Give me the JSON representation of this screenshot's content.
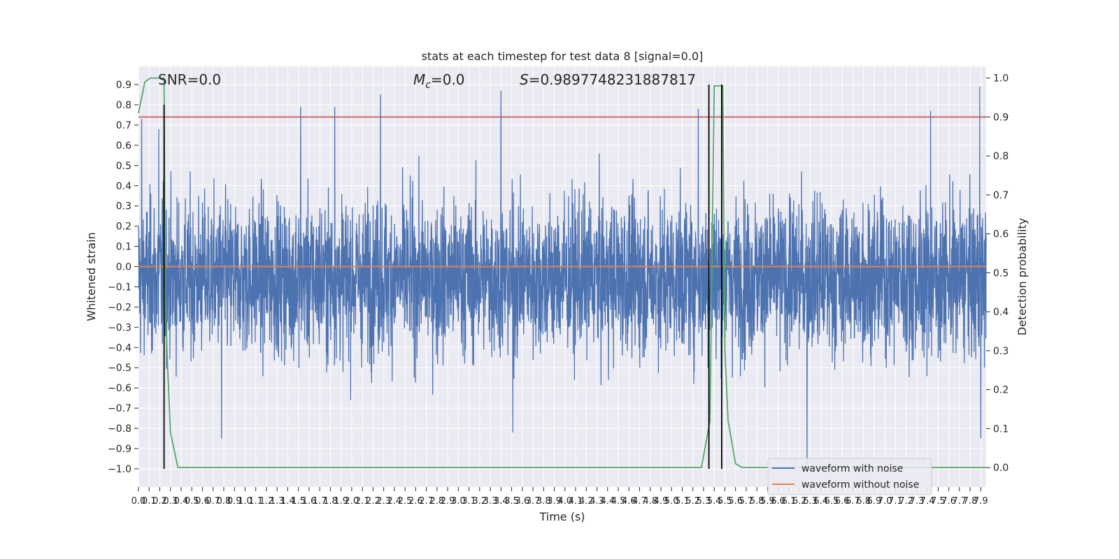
{
  "chart_data": {
    "type": "line",
    "title": "stats at each timestep for test data 8 [signal=0.0]",
    "xlabel": "Time (s)",
    "ylabel": "Whitened strain",
    "ylabel_right": "Detection probability",
    "xlim": [
      0.0,
      7.95
    ],
    "ylim": [
      -1.09,
      0.99
    ],
    "ylim_right": [
      -0.05,
      1.03
    ],
    "x_ticks": [
      0.0,
      0.1,
      0.2,
      0.3,
      0.4,
      0.5,
      0.6,
      0.7,
      0.8,
      0.9,
      1.0,
      1.1,
      1.2,
      1.3,
      1.4,
      1.5,
      1.6,
      1.7,
      1.8,
      1.9,
      2.0,
      2.1,
      2.2,
      2.3,
      2.4,
      2.5,
      2.6,
      2.7,
      2.8,
      2.9,
      3.0,
      3.1,
      3.2,
      3.3,
      3.4,
      3.5,
      3.6,
      3.7,
      3.8,
      3.9,
      4.0,
      4.1,
      4.2,
      4.3,
      4.4,
      4.5,
      4.6,
      4.7,
      4.8,
      4.9,
      5.0,
      5.1,
      5.2,
      5.3,
      5.4,
      5.5,
      5.6,
      5.7,
      5.8,
      5.9,
      6.0,
      6.1,
      6.2,
      6.3,
      6.4,
      6.5,
      6.6,
      6.7,
      6.8,
      6.9,
      7.0,
      7.1,
      7.2,
      7.3,
      7.4,
      7.5,
      7.6,
      7.7,
      7.8,
      7.9
    ],
    "x_tick_labels": [
      "0.0",
      "0.1",
      "0.2",
      "0.3",
      "0.4",
      "0.5",
      "0.6",
      "0.7",
      "0.8",
      "0.9",
      "1.0",
      "1.1",
      "1.2",
      "1.3",
      "1.4",
      "1.5",
      "1.6",
      "1.7",
      "1.8",
      "1.9",
      "2.0",
      "2.1",
      "2.2",
      "2.3",
      "2.4",
      "2.5",
      "2.6",
      "2.7",
      "2.8",
      "2.9",
      "3.0",
      "3.1",
      "3.2",
      "3.3",
      "3.4",
      "3.5",
      "3.6",
      "3.7",
      "3.8",
      "3.9",
      "4.0",
      "4.1",
      "4.2",
      "4.3",
      "4.4",
      "4.5",
      "4.6",
      "4.7",
      "4.8",
      "4.9",
      "5.0",
      "5.1",
      "5.2",
      "5.3",
      "5.4",
      "5.5",
      "5.6",
      "5.7",
      "5.8",
      "5.9",
      "6.0",
      "6.1",
      "6.2",
      "6.3",
      "6.4",
      "6.5",
      "6.6",
      "6.7",
      "6.8",
      "6.9",
      "7.0",
      "7.1",
      "7.2",
      "7.3",
      "7.4",
      "7.5",
      "7.6",
      "7.7",
      "7.8",
      "7.9"
    ],
    "y_ticks": [
      -1.0,
      -0.9,
      -0.8,
      -0.7,
      -0.6,
      -0.5,
      -0.4,
      -0.3,
      -0.2,
      -0.1,
      0.0,
      0.1,
      0.2,
      0.3,
      0.4,
      0.5,
      0.6,
      0.7,
      0.8,
      0.9
    ],
    "y_tick_labels": [
      "−1.0",
      "−0.9",
      "−0.8",
      "−0.7",
      "−0.6",
      "−0.5",
      "−0.4",
      "−0.3",
      "−0.2",
      "−0.1",
      "0.0",
      "0.1",
      "0.2",
      "0.3",
      "0.4",
      "0.5",
      "0.6",
      "0.7",
      "0.8",
      "0.9"
    ],
    "y_ticks_right": [
      0.0,
      0.1,
      0.2,
      0.3,
      0.4,
      0.5,
      0.6,
      0.7,
      0.8,
      0.9,
      1.0
    ],
    "y_tick_labels_right": [
      "0.0",
      "0.1",
      "0.2",
      "0.3",
      "0.4",
      "0.5",
      "0.6",
      "0.7",
      "0.8",
      "0.9",
      "1.0"
    ],
    "grid": true,
    "annotations": [
      {
        "text_prefix": "SNR",
        "text": "=0.0"
      },
      {
        "text_prefix": "M",
        "subscript": "c",
        "text": "=0.0"
      },
      {
        "text_prefix": "S",
        "text": "=0.9897748231887817"
      }
    ],
    "series": [
      {
        "name": "waveform with noise",
        "color": "#4c72b0",
        "kind": "noise",
        "sample_count": 4000,
        "typical_range": [
          -0.43,
          0.32
        ],
        "peak_range": [
          -0.98,
          0.89
        ],
        "spikes": [
          {
            "x": 0.03,
            "y": 0.73
          },
          {
            "x": 0.24,
            "y": 0.81
          },
          {
            "x": 0.19,
            "y": 0.68
          },
          {
            "x": 0.78,
            "y": -0.85
          },
          {
            "x": 1.52,
            "y": 0.79
          },
          {
            "x": 1.84,
            "y": 0.79
          },
          {
            "x": 2.27,
            "y": 0.85
          },
          {
            "x": 3.4,
            "y": 0.87
          },
          {
            "x": 3.51,
            "y": -0.82
          },
          {
            "x": 5.25,
            "y": 0.78
          },
          {
            "x": 5.47,
            "y": 0.84
          },
          {
            "x": 6.27,
            "y": -0.98
          },
          {
            "x": 7.43,
            "y": 0.77
          },
          {
            "x": 7.89,
            "y": 0.89
          },
          {
            "x": 7.9,
            "y": -0.85
          }
        ]
      },
      {
        "name": "waveform without noise",
        "color": "#dd8452",
        "x": [
          0.0,
          7.95
        ],
        "y": [
          0.0,
          0.0
        ]
      },
      {
        "name": "",
        "color": "#55a868",
        "axis": "right",
        "x": [
          0.0,
          0.06,
          0.11,
          0.24,
          0.25,
          0.27,
          0.3,
          0.37,
          0.4,
          5.28,
          5.36,
          5.4,
          5.43,
          5.48,
          5.5,
          5.53,
          5.6,
          5.66,
          7.95
        ],
        "y": [
          0.91,
          0.99,
          1.0,
          1.0,
          0.45,
          0.28,
          0.09,
          0.0,
          0.0,
          0.0,
          0.12,
          0.98,
          0.98,
          0.98,
          0.3,
          0.12,
          0.01,
          0.0,
          0.0
        ]
      }
    ],
    "threshold_line": {
      "axis": "right",
      "y": 0.9,
      "color": "#c44e52"
    },
    "vertical_lines": [
      {
        "x": 0.24,
        "y_from": -1.0,
        "y_to": 0.8,
        "color": "#000000"
      },
      {
        "x": 5.35,
        "y_from": -1.0,
        "y_to": 0.9,
        "color": "#000000"
      },
      {
        "x": 5.47,
        "y_from": -1.0,
        "y_to": 0.9,
        "color": "#000000"
      }
    ],
    "legend": {
      "placement": "lower-right",
      "entries": [
        {
          "label": "waveform with noise",
          "color": "#4c72b0"
        },
        {
          "label": "waveform without noise",
          "color": "#dd8452"
        }
      ]
    }
  }
}
